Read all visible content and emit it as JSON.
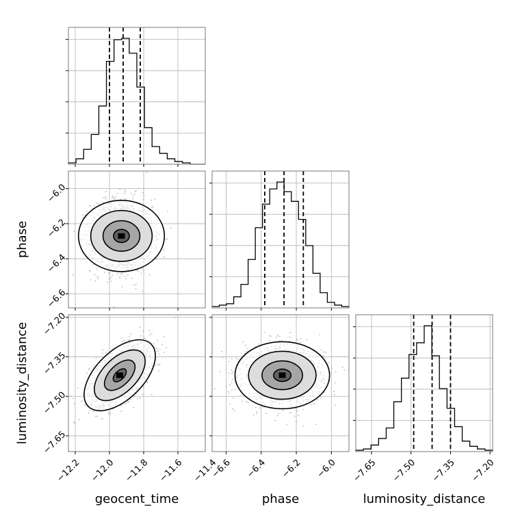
{
  "chart_data": {
    "type": "corner",
    "parameters": [
      "geocent_time",
      "phase",
      "luminosity_distance"
    ],
    "axis_labels": {
      "x": [
        "geocent_time",
        "phase",
        "luminosity_distance"
      ],
      "y": [
        "phase",
        "luminosity_distance"
      ]
    },
    "ranges": {
      "geocent_time": [
        -12.24,
        -11.44
      ],
      "phase": [
        -6.68,
        -5.9
      ],
      "luminosity_distance": [
        -7.71,
        -7.19
      ]
    },
    "ticks": {
      "geocent_time": {
        "values": [
          -12.2,
          -12.0,
          -11.8,
          -11.6,
          -11.4
        ],
        "labels": [
          "−12.2",
          "−12.0",
          "−11.8",
          "−11.6",
          "−11.4"
        ]
      },
      "phase": {
        "values": [
          -6.6,
          -6.4,
          -6.2,
          -6.0
        ],
        "labels": [
          "−6.6",
          "−6.4",
          "−6.2",
          "−6.0"
        ]
      },
      "luminosity_distance": {
        "values": [
          -7.65,
          -7.5,
          -7.35,
          -7.2
        ],
        "labels": [
          "−7.65",
          "−7.50",
          "−7.35",
          "−7.20"
        ]
      }
    },
    "quantiles": {
      "geocent_time": [
        -12.0,
        -11.92,
        -11.82
      ],
      "phase": [
        -6.38,
        -6.27,
        -6.16
      ],
      "luminosity_distance": [
        -7.49,
        -7.42,
        -7.35
      ]
    },
    "histograms": {
      "geocent_time": [
        1,
        4,
        11,
        22,
        43,
        76,
        92,
        93,
        82,
        57,
        27,
        13,
        8,
        4,
        2,
        1,
        0,
        0
      ],
      "phase": [
        1,
        2,
        3,
        8,
        17,
        35,
        58,
        75,
        86,
        91,
        84,
        77,
        64,
        45,
        25,
        11,
        4,
        2,
        1
      ],
      "luminosity_distance": [
        1,
        2,
        5,
        10,
        18,
        38,
        56,
        74,
        83,
        96,
        73,
        48,
        33,
        19,
        8,
        4,
        2,
        1
      ]
    },
    "pairs": [
      {
        "x": "geocent_time",
        "y": "phase",
        "mean": [
          -11.93,
          -6.27
        ],
        "sd": [
          0.085,
          0.1
        ],
        "rho": 0.0
      },
      {
        "x": "geocent_time",
        "y": "luminosity_distance",
        "mean": [
          -11.94,
          -7.42
        ],
        "sd": [
          0.085,
          0.055
        ],
        "rho": 0.55
      },
      {
        "x": "phase",
        "y": "luminosity_distance",
        "mean": [
          -6.28,
          -7.42
        ],
        "sd": [
          0.11,
          0.052
        ],
        "rho": 0.0
      }
    ],
    "grid": true
  }
}
